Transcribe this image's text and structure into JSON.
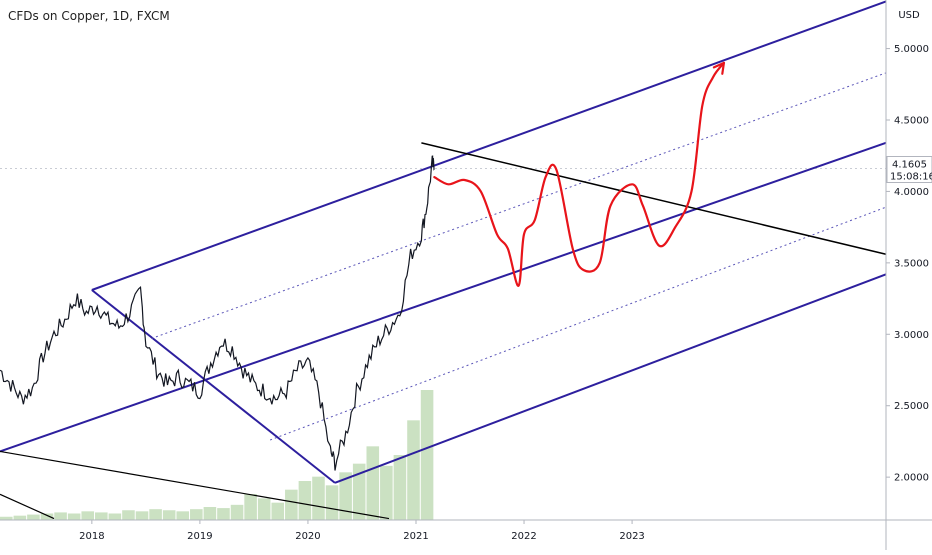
{
  "chart_data": {
    "type": "line",
    "title": "CFDs on Copper, 1D, FXCM",
    "currency_label": "USD",
    "y_ticks": [
      "5.0000",
      "4.5000",
      "4.0000",
      "3.5000",
      "3.0000",
      "2.5000",
      "2.0000"
    ],
    "y_tick_values": [
      5.0,
      4.5,
      4.0,
      3.5,
      3.0,
      2.5,
      2.0
    ],
    "x_ticks": [
      "2018",
      "2019",
      "2020",
      "2021",
      "2022",
      "2023"
    ],
    "x_tick_values": [
      2018,
      2019,
      2020,
      2021,
      2022,
      2023
    ],
    "xlim": [
      2017.15,
      2025.35
    ],
    "ylim": [
      1.7,
      5.34
    ],
    "last_price": "4.1605",
    "countdown": "15:08:16",
    "grid": false,
    "price_series": {
      "name": "",
      "points": [
        [
          2017.15,
          2.75
        ],
        [
          2017.25,
          2.65
        ],
        [
          2017.35,
          2.55
        ],
        [
          2017.45,
          2.62
        ],
        [
          2017.55,
          2.85
        ],
        [
          2017.65,
          3.0
        ],
        [
          2017.75,
          3.1
        ],
        [
          2017.85,
          3.25
        ],
        [
          2017.95,
          3.15
        ],
        [
          2018.05,
          3.2
        ],
        [
          2018.15,
          3.1
        ],
        [
          2018.25,
          3.05
        ],
        [
          2018.35,
          3.15
        ],
        [
          2018.45,
          3.3
        ],
        [
          2018.5,
          2.95
        ],
        [
          2018.6,
          2.75
        ],
        [
          2018.7,
          2.65
        ],
        [
          2018.8,
          2.7
        ],
        [
          2018.9,
          2.65
        ],
        [
          2019.0,
          2.6
        ],
        [
          2019.1,
          2.8
        ],
        [
          2019.2,
          2.95
        ],
        [
          2019.3,
          2.9
        ],
        [
          2019.4,
          2.75
        ],
        [
          2019.5,
          2.65
        ],
        [
          2019.6,
          2.6
        ],
        [
          2019.7,
          2.55
        ],
        [
          2019.8,
          2.6
        ],
        [
          2019.9,
          2.75
        ],
        [
          2020.0,
          2.8
        ],
        [
          2020.1,
          2.6
        ],
        [
          2020.2,
          2.2
        ],
        [
          2020.25,
          2.1
        ],
        [
          2020.35,
          2.3
        ],
        [
          2020.45,
          2.6
        ],
        [
          2020.55,
          2.8
        ],
        [
          2020.65,
          2.95
        ],
        [
          2020.75,
          3.05
        ],
        [
          2020.85,
          3.15
        ],
        [
          2020.95,
          3.55
        ],
        [
          2021.05,
          3.7
        ],
        [
          2021.1,
          3.9
        ],
        [
          2021.15,
          4.2
        ],
        [
          2021.17,
          4.16
        ]
      ]
    },
    "volume": [
      0.15,
      0.2,
      0.25,
      0.3,
      0.35,
      0.3,
      0.4,
      0.35,
      0.3,
      0.45,
      0.4,
      0.5,
      0.45,
      0.4,
      0.5,
      0.6,
      0.55,
      0.7,
      1.2,
      1.0,
      0.8,
      1.4,
      1.8,
      2.0,
      1.6,
      2.2,
      2.6,
      3.4,
      2.5,
      3.0,
      4.6,
      6.0
    ],
    "volume_range": [
      2017.15,
      2021.17
    ],
    "annotations": {
      "channel_upper": {
        "x": [
          2018.0,
          2025.35
        ],
        "y": [
          3.31,
          5.33
        ]
      },
      "channel_middle": {
        "x": [
          2017.15,
          2025.35
        ],
        "y": [
          2.18,
          4.34
        ]
      },
      "channel_lower": {
        "x": [
          2020.25,
          2025.35
        ],
        "y": [
          1.96,
          3.42
        ]
      },
      "dotted_1": {
        "x": [
          2018.55,
          2025.35
        ],
        "y": [
          2.97,
          4.83
        ]
      },
      "dotted_2": {
        "x": [
          2019.65,
          2025.35
        ],
        "y": [
          2.26,
          3.89
        ]
      },
      "diagonal_down": {
        "x": [
          2018.0,
          2020.25
        ],
        "y": [
          3.31,
          1.96
        ]
      },
      "resistance_trendline": {
        "x": [
          2021.05,
          2025.35
        ],
        "y": [
          4.34,
          3.56
        ]
      },
      "support_line_1": {
        "x": [
          2017.15,
          2020.75
        ],
        "y": [
          2.18,
          1.71
        ]
      },
      "support_line_2": {
        "x": [
          2017.15,
          2017.65
        ],
        "y": [
          1.88,
          1.71
        ]
      },
      "projection_path": [
        [
          2021.17,
          4.1
        ],
        [
          2021.3,
          4.05
        ],
        [
          2021.45,
          4.08
        ],
        [
          2021.6,
          4.0
        ],
        [
          2021.75,
          3.7
        ],
        [
          2021.85,
          3.6
        ],
        [
          2021.95,
          3.34
        ],
        [
          2022.0,
          3.7
        ],
        [
          2022.1,
          3.8
        ],
        [
          2022.2,
          4.1
        ],
        [
          2022.3,
          4.15
        ],
        [
          2022.45,
          3.6
        ],
        [
          2022.55,
          3.45
        ],
        [
          2022.7,
          3.5
        ],
        [
          2022.8,
          3.9
        ],
        [
          2023.0,
          4.05
        ],
        [
          2023.1,
          3.9
        ],
        [
          2023.25,
          3.62
        ],
        [
          2023.4,
          3.75
        ],
        [
          2023.55,
          4.0
        ],
        [
          2023.65,
          4.6
        ],
        [
          2023.75,
          4.8
        ],
        [
          2023.85,
          4.9
        ]
      ]
    },
    "colors": {
      "price": "#131722",
      "channel": "#2d1f9e",
      "dotted": "#5a55b8",
      "trendline": "#000000",
      "projection": "#e8141a",
      "volume": "#6aa84f",
      "axis_text": "#131722",
      "last_price_line": "#c9ccd4"
    }
  }
}
